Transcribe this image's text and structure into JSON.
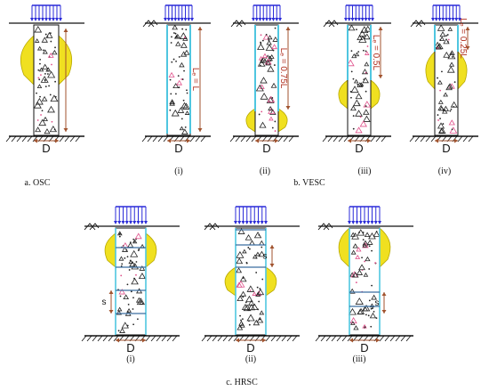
{
  "figure": {
    "captions": {
      "osc": "a. OSC",
      "vesc": "b. VESC",
      "hrsc": "c. HRSC",
      "vesc_i": "(i)",
      "vesc_ii": "(ii)",
      "vesc_iii": "(iii)",
      "vesc_iv": "(iv)",
      "hrsc_i": "(i)",
      "hrsc_ii": "(ii)",
      "hrsc_iii": "(iii)"
    },
    "labels": {
      "diameter": "D",
      "spacing": "s",
      "len_full": "Lₑ = L",
      "len_075": "Lₑ = 0.75L",
      "len_05": "Lₑ = 0.5L",
      "len_025": "Lₑ = 0.25L"
    },
    "colors": {
      "load_arrows": "#2a2ad8",
      "bulge": "#f0e020",
      "bulge_outline": "#b8a800",
      "dimension": "#a0522d",
      "column_edge": "#4fc6e0",
      "spacer_line": "#3a6ea0",
      "aggregate": "#222222",
      "aggregate_accent": "#e0508a"
    }
  }
}
